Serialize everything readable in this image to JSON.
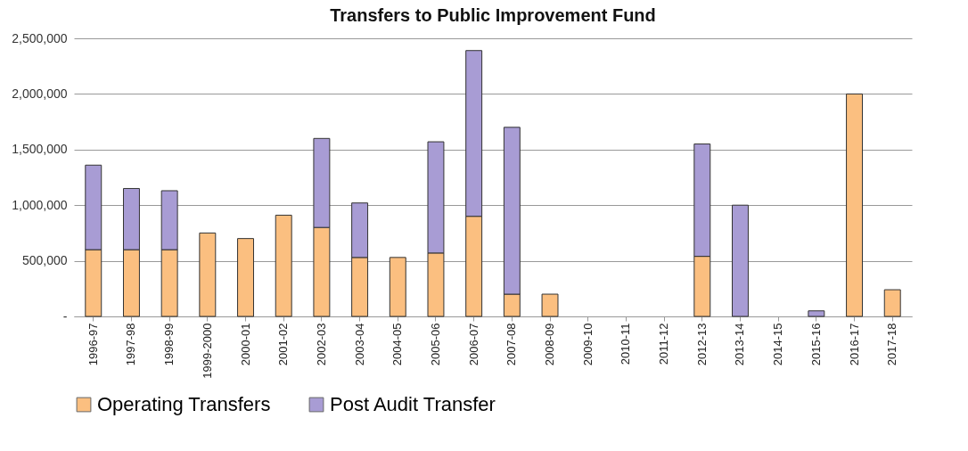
{
  "chart_data": {
    "type": "bar",
    "title": "Transfers to Public Improvement Fund",
    "stacked": true,
    "categories": [
      "1996-97",
      "1997-98",
      "1998-99",
      "1999-2000",
      "2000-01",
      "2001-02",
      "2002-03",
      "2003-04",
      "2004-05",
      "2005-06",
      "2006-07",
      "2007-08",
      "2008-09",
      "2009-10",
      "2010-11",
      "2011-12",
      "2012-13",
      "2013-14",
      "2014-15",
      "2015-16",
      "2016-17",
      "2017-18"
    ],
    "series": [
      {
        "name": "Operating Transfers",
        "color": "#fbbf80",
        "values": [
          600000,
          600000,
          600000,
          750000,
          700000,
          910000,
          800000,
          530000,
          530000,
          570000,
          900000,
          200000,
          200000,
          null,
          null,
          null,
          540000,
          null,
          null,
          null,
          2000000,
          240000
        ]
      },
      {
        "name": "Post Audit Transfer",
        "color": "#a89cd4",
        "values": [
          760000,
          550000,
          530000,
          null,
          null,
          null,
          800000,
          490000,
          null,
          1000000,
          1490000,
          1500000,
          null,
          null,
          null,
          null,
          1010000,
          1000000,
          null,
          50000,
          null,
          null
        ]
      }
    ],
    "ylim": [
      0,
      2500000
    ],
    "yticks": [
      {
        "value": 0,
        "label": "-"
      },
      {
        "value": 500000,
        "label": "500,000"
      },
      {
        "value": 1000000,
        "label": "1,000,000"
      },
      {
        "value": 1500000,
        "label": "1,500,000"
      },
      {
        "value": 2000000,
        "label": "2,000,000"
      },
      {
        "value": 2500000,
        "label": "2,500,000"
      }
    ],
    "grid": "y",
    "legend": "bottom"
  }
}
